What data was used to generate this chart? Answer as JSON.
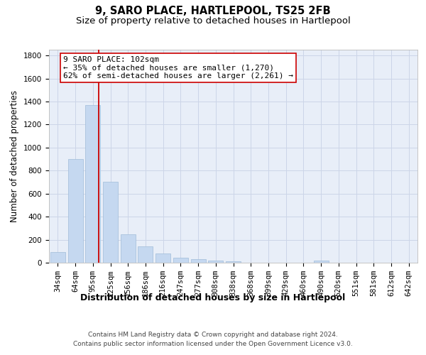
{
  "title": "9, SARO PLACE, HARTLEPOOL, TS25 2FB",
  "subtitle": "Size of property relative to detached houses in Hartlepool",
  "xlabel": "Distribution of detached houses by size in Hartlepool",
  "ylabel": "Number of detached properties",
  "categories": [
    "34sqm",
    "64sqm",
    "95sqm",
    "125sqm",
    "156sqm",
    "186sqm",
    "216sqm",
    "247sqm",
    "277sqm",
    "308sqm",
    "338sqm",
    "368sqm",
    "399sqm",
    "429sqm",
    "460sqm",
    "490sqm",
    "520sqm",
    "551sqm",
    "581sqm",
    "612sqm",
    "642sqm"
  ],
  "values": [
    90,
    900,
    1370,
    700,
    245,
    140,
    80,
    45,
    28,
    20,
    13,
    0,
    0,
    0,
    0,
    20,
    0,
    0,
    0,
    0,
    0
  ],
  "bar_color": "#c5d8f0",
  "bar_edge_color": "#a0bcd8",
  "red_line_index": 2.35,
  "annotation_line1": "9 SARO PLACE: 102sqm",
  "annotation_line2": "← 35% of detached houses are smaller (1,270)",
  "annotation_line3": "62% of semi-detached houses are larger (2,261) →",
  "annotation_box_color": "#ffffff",
  "annotation_box_edge": "#cc0000",
  "red_line_color": "#cc0000",
  "ylim": [
    0,
    1850
  ],
  "yticks": [
    0,
    200,
    400,
    600,
    800,
    1000,
    1200,
    1400,
    1600,
    1800
  ],
  "grid_color": "#ccd5e8",
  "background_color": "#e8eef8",
  "footer_line1": "Contains HM Land Registry data © Crown copyright and database right 2024.",
  "footer_line2": "Contains public sector information licensed under the Open Government Licence v3.0.",
  "title_fontsize": 10.5,
  "subtitle_fontsize": 9.5,
  "xlabel_fontsize": 9,
  "ylabel_fontsize": 8.5,
  "tick_fontsize": 7.5,
  "annot_fontsize": 8,
  "footer_fontsize": 6.5
}
